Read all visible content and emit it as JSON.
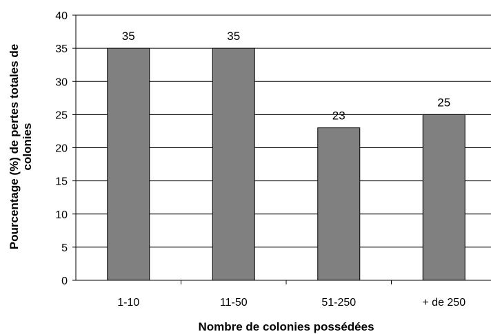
{
  "chart_data": {
    "type": "bar",
    "categories": [
      "1-10",
      "11-50",
      "51-250",
      "+ de 250"
    ],
    "values": [
      35,
      35,
      23,
      25
    ],
    "data_labels": [
      "35",
      "35",
      "23",
      "25"
    ],
    "title": "",
    "xlabel": "Nombre de colonies possédées",
    "ylabel_lines": [
      "Pourcentage (%) de pertes totales de",
      "colonies"
    ],
    "ylim": [
      0,
      40
    ],
    "yticks": [
      0,
      5,
      10,
      15,
      20,
      25,
      30,
      35,
      40
    ],
    "grid": true,
    "legend": "none",
    "bar_color": "#808080",
    "bar_stroke": "#000000"
  }
}
